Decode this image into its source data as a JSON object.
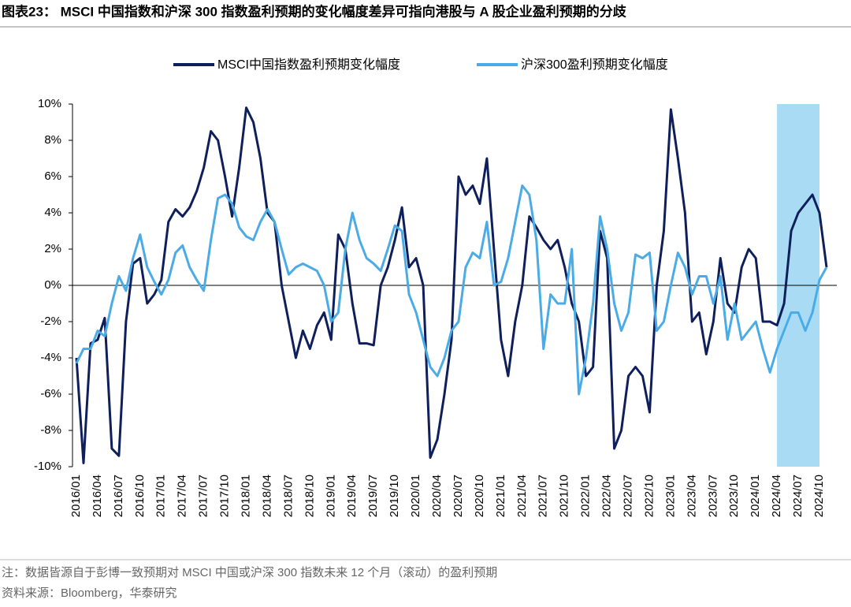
{
  "chart_data": {
    "type": "line",
    "title": "图表23：  MSCI 中国指数和沪深 300 指数盈利预期的变化幅度差异可指向港股与 A 股企业盈利预期的分歧",
    "notes": [
      "注：数据皆源自于彭博一致预期对 MSCI 中国或沪深 300 指数未来 12 个月（滚动）的盈利预期",
      "资料来源：Bloomberg，华泰研究"
    ],
    "categories": [
      "2016/01",
      null,
      null,
      "2016/04",
      null,
      null,
      "2016/07",
      null,
      null,
      "2016/10",
      null,
      null,
      "2017/01",
      null,
      null,
      "2017/04",
      null,
      null,
      "2017/07",
      null,
      null,
      "2017/10",
      null,
      null,
      "2018/01",
      null,
      null,
      "2018/04",
      null,
      null,
      "2018/07",
      null,
      null,
      "2018/10",
      null,
      null,
      "2019/01",
      null,
      null,
      "2019/04",
      null,
      null,
      "2019/07",
      null,
      null,
      "2019/10",
      null,
      null,
      "2020/01",
      null,
      null,
      "2020/04",
      null,
      null,
      "2020/07",
      null,
      null,
      "2020/10",
      null,
      null,
      "2021/01",
      null,
      null,
      "2021/04",
      null,
      null,
      "2021/07",
      null,
      null,
      "2021/10",
      null,
      null,
      "2022/01",
      null,
      null,
      "2022/04",
      null,
      null,
      "2022/07",
      null,
      null,
      "2022/10",
      null,
      null,
      "2023/01",
      null,
      null,
      "2023/04",
      null,
      null,
      "2023/07",
      null,
      null,
      "2023/10",
      null,
      null,
      "2024/01",
      null,
      null,
      "2024/04",
      null,
      null,
      "2024/07",
      null,
      null,
      "2024/10",
      null
    ],
    "series": [
      {
        "name": "MSCI中国指数盈利预期变化幅度",
        "color": "#0e1f5b",
        "values": [
          -4,
          -9.8,
          -3.2,
          -3,
          -1.8,
          -9,
          -9.4,
          -2,
          1.2,
          1.5,
          -1,
          -0.5,
          0.3,
          3.5,
          4.2,
          3.8,
          4.3,
          5.2,
          6.5,
          8.5,
          8,
          6,
          3.8,
          6.5,
          9.8,
          9,
          7,
          4,
          3.5,
          0,
          -2,
          -4,
          -2.5,
          -3.5,
          -2.2,
          -1.5,
          -3,
          2.8,
          2,
          -1,
          -3.2,
          -3.2,
          -3.3,
          0,
          1,
          2.5,
          4.3,
          1,
          1.5,
          0,
          -9.5,
          -8.5,
          -6,
          -3,
          6,
          5,
          5.5,
          4.5,
          7,
          2,
          -3,
          -5,
          -2,
          0,
          3.8,
          3.2,
          2.5,
          2,
          2.5,
          1,
          -1,
          -2,
          -5,
          -4.5,
          3,
          1.5,
          -9,
          -8,
          -5,
          -4.5,
          -5,
          -7,
          0,
          3,
          9.7,
          7,
          4,
          -2,
          -1.5,
          -3.8,
          -2,
          1.5,
          -1,
          -1.5,
          1,
          2,
          1.5,
          -2,
          -2,
          -2.2,
          -1,
          3,
          4,
          4.5,
          5,
          4,
          1
        ]
      },
      {
        "name": "沪深300盈利预期变化幅度",
        "color": "#4aabe6",
        "values": [
          -4.3,
          -3.5,
          -3.5,
          -2.5,
          -2.8,
          -1,
          0.5,
          -0.3,
          1.5,
          2.8,
          1,
          0.2,
          -0.5,
          0.3,
          1.8,
          2.2,
          1,
          0.3,
          -0.3,
          2.5,
          4.8,
          5,
          4.5,
          3.2,
          2.7,
          2.5,
          3.5,
          4.2,
          3.5,
          2,
          0.6,
          1,
          1.2,
          1,
          0.8,
          0,
          -2,
          -1.5,
          2,
          4,
          2.5,
          1.5,
          1.2,
          0.8,
          2,
          3.3,
          3,
          -0.5,
          -1.5,
          -3,
          -4.5,
          -5,
          -4,
          -2.5,
          -2,
          1,
          1.8,
          1.5,
          3.5,
          0,
          0.2,
          1.5,
          3.5,
          5.5,
          5,
          2.5,
          -3.5,
          -0.5,
          -1,
          -1,
          2,
          -6,
          -4,
          -1,
          3.8,
          2,
          -1,
          -2.5,
          -1.5,
          1.7,
          1.5,
          1.8,
          -2.5,
          -2,
          0,
          1.8,
          1,
          -0.5,
          0.5,
          0.5,
          -1,
          0.5,
          -3,
          -1,
          -3,
          -2.5,
          -2,
          -3.5,
          -4.8,
          -3.5,
          -2.5,
          -1.5,
          -1.5,
          -2.5,
          -1.5,
          0.3,
          1
        ]
      }
    ],
    "ylim": [
      -10,
      10
    ],
    "yticks": [
      {
        "value": -10,
        "label": "-10%"
      },
      {
        "value": -8,
        "label": "-8%"
      },
      {
        "value": -6,
        "label": "-6%"
      },
      {
        "value": -4,
        "label": "-4%"
      },
      {
        "value": -2,
        "label": "-2%"
      },
      {
        "value": 0,
        "label": "0%"
      },
      {
        "value": 2,
        "label": "2%"
      },
      {
        "value": 4,
        "label": "4%"
      },
      {
        "value": 6,
        "label": "6%"
      },
      {
        "value": 8,
        "label": "8%"
      },
      {
        "value": 10,
        "label": "10%"
      }
    ],
    "grid": false,
    "legend": "top",
    "highlight": [
      99,
      105
    ],
    "highlight_color": "#a9dcf4"
  }
}
